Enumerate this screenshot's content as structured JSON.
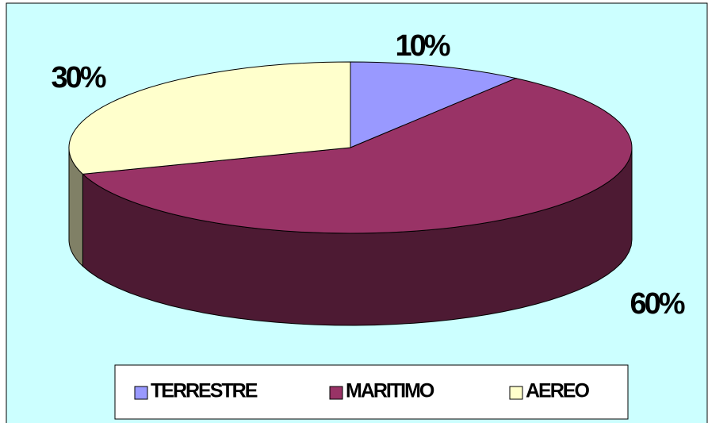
{
  "chart_data": {
    "type": "pie3d",
    "categories": [
      "TERRESTRE",
      "MARITIMO",
      "AEREO"
    ],
    "values": [
      10,
      60,
      30
    ],
    "value_labels": [
      "10%",
      "60%",
      "30%"
    ],
    "colors": [
      "#9999ff",
      "#993366",
      "#ffffcc"
    ],
    "legend": "bottom"
  }
}
